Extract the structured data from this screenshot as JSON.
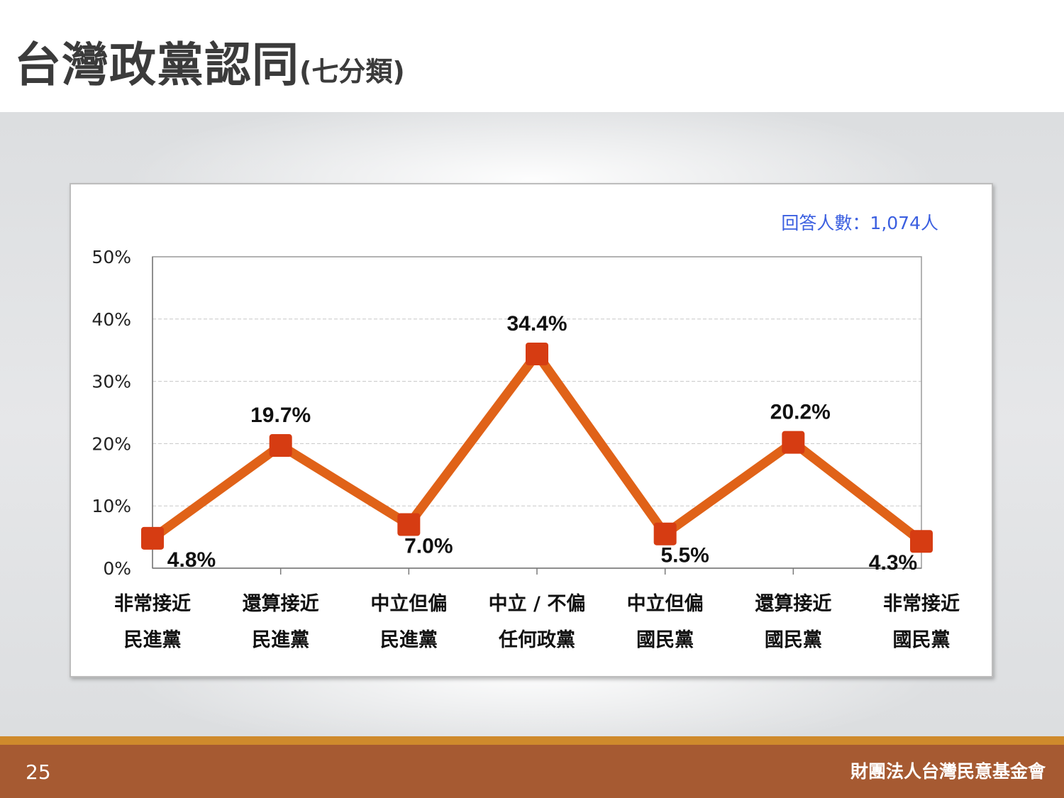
{
  "title": {
    "main": "台灣政黨認同",
    "sub": "(七分類)"
  },
  "footer": {
    "page_number": "25",
    "organization": "財團法人台灣民意基金會"
  },
  "colors": {
    "line": "#e06218",
    "marker": "#d63c12",
    "note": "#3b5fe0",
    "footer": "#a65a32",
    "footer_stripe": "#cf8a2c"
  },
  "chart_data": {
    "type": "line",
    "note": "回答人數：1,074人",
    "categories": [
      [
        "非常接近",
        "民進黨"
      ],
      [
        "還算接近",
        "民進黨"
      ],
      [
        "中立但偏",
        "民進黨"
      ],
      [
        "中立 / 不偏",
        "任何政黨"
      ],
      [
        "中立但偏",
        "國民黨"
      ],
      [
        "還算接近",
        "國民黨"
      ],
      [
        "非常接近",
        "國民黨"
      ]
    ],
    "values": [
      4.8,
      19.7,
      7.0,
      34.4,
      5.5,
      20.2,
      4.3
    ],
    "data_labels": [
      "4.8%",
      "19.7%",
      "7.0%",
      "34.4%",
      "5.5%",
      "20.2%",
      "4.3%"
    ],
    "ylim": [
      0,
      50
    ],
    "yticks": [
      0,
      10,
      20,
      30,
      40,
      50
    ],
    "ytick_labels": [
      "0%",
      "10%",
      "20%",
      "30%",
      "40%",
      "50%"
    ],
    "grid": true,
    "marker": "square"
  }
}
